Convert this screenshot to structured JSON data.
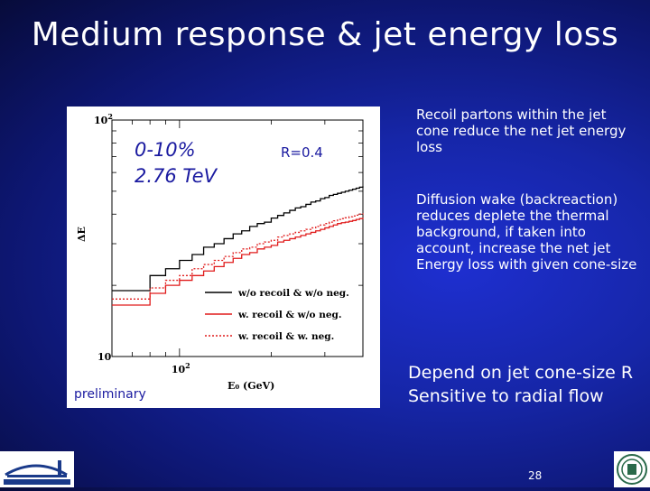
{
  "slide": {
    "title": "Medium response & jet energy loss",
    "slide_number": "28"
  },
  "figure": {
    "energy_label_line1": "0-10%",
    "energy_label_line2": "2.76 TeV",
    "radius_label": "R=0.4",
    "preliminary_label": "preliminary"
  },
  "text": {
    "paragraph1": "Recoil partons within the jet cone reduce the net jet energy loss",
    "paragraph2": "Diffusion wake (backreaction) reduces deplete the thermal background, if taken into account, increase the net jet Energy loss with given cone-size",
    "conclusion_line1": "Depend on jet cone-size R",
    "conclusion_line2": "Sensitive to radial flow"
  },
  "chart_data": {
    "type": "line",
    "xlabel": "E_0 (GeV)",
    "ylabel": "ΔE",
    "x_log": true,
    "y_log": true,
    "x_ticks": [
      "10^2"
    ],
    "y_ticks": [
      "10",
      "10^2"
    ],
    "xlim": [
      60,
      400
    ],
    "ylim": [
      10,
      100
    ],
    "legend_position": "bottom-right",
    "x": [
      60,
      70,
      80,
      90,
      100,
      110,
      120,
      130,
      140,
      150,
      160,
      170,
      180,
      190,
      200,
      210,
      220,
      230,
      240,
      250,
      260,
      270,
      280,
      290,
      300,
      310,
      320,
      330,
      340,
      350,
      360,
      370,
      380,
      390,
      400
    ],
    "series": [
      {
        "name": "w/o recoil & w/o neg.",
        "color": "#000000",
        "style": "solid",
        "values": [
          19.0,
          19.0,
          22.0,
          23.5,
          25.5,
          27.0,
          29.0,
          30.0,
          31.5,
          33.0,
          34.0,
          35.5,
          36.5,
          37.0,
          38.5,
          39.5,
          40.5,
          41.5,
          42.5,
          43.0,
          44.0,
          45.0,
          45.5,
          46.5,
          47.0,
          48.0,
          48.5,
          49.0,
          49.5,
          50.0,
          50.5,
          51.0,
          51.5,
          52.0,
          52.5
        ]
      },
      {
        "name": "w. recoil & w/o neg.",
        "color": "#e01b1b",
        "style": "solid",
        "values": [
          16.5,
          16.5,
          18.5,
          20.0,
          21.0,
          22.0,
          23.0,
          24.0,
          25.0,
          26.0,
          27.0,
          27.5,
          28.5,
          29.0,
          29.5,
          30.5,
          31.0,
          31.5,
          32.0,
          32.5,
          33.0,
          33.5,
          34.0,
          34.5,
          35.0,
          35.5,
          36.0,
          36.5,
          36.8,
          37.0,
          37.3,
          37.6,
          38.0,
          38.3,
          38.6
        ]
      },
      {
        "name": "w. recoil & w. neg.",
        "color": "#e01b1b",
        "style": "dotted",
        "values": [
          17.5,
          17.5,
          19.5,
          21.0,
          22.0,
          23.5,
          24.5,
          25.5,
          26.5,
          27.5,
          28.5,
          29.0,
          30.0,
          30.5,
          31.0,
          32.0,
          32.5,
          33.0,
          33.5,
          34.0,
          34.5,
          35.0,
          35.5,
          36.0,
          36.5,
          37.0,
          37.5,
          38.0,
          38.3,
          38.6,
          39.0,
          39.3,
          39.6,
          40.0,
          40.3
        ]
      }
    ]
  }
}
